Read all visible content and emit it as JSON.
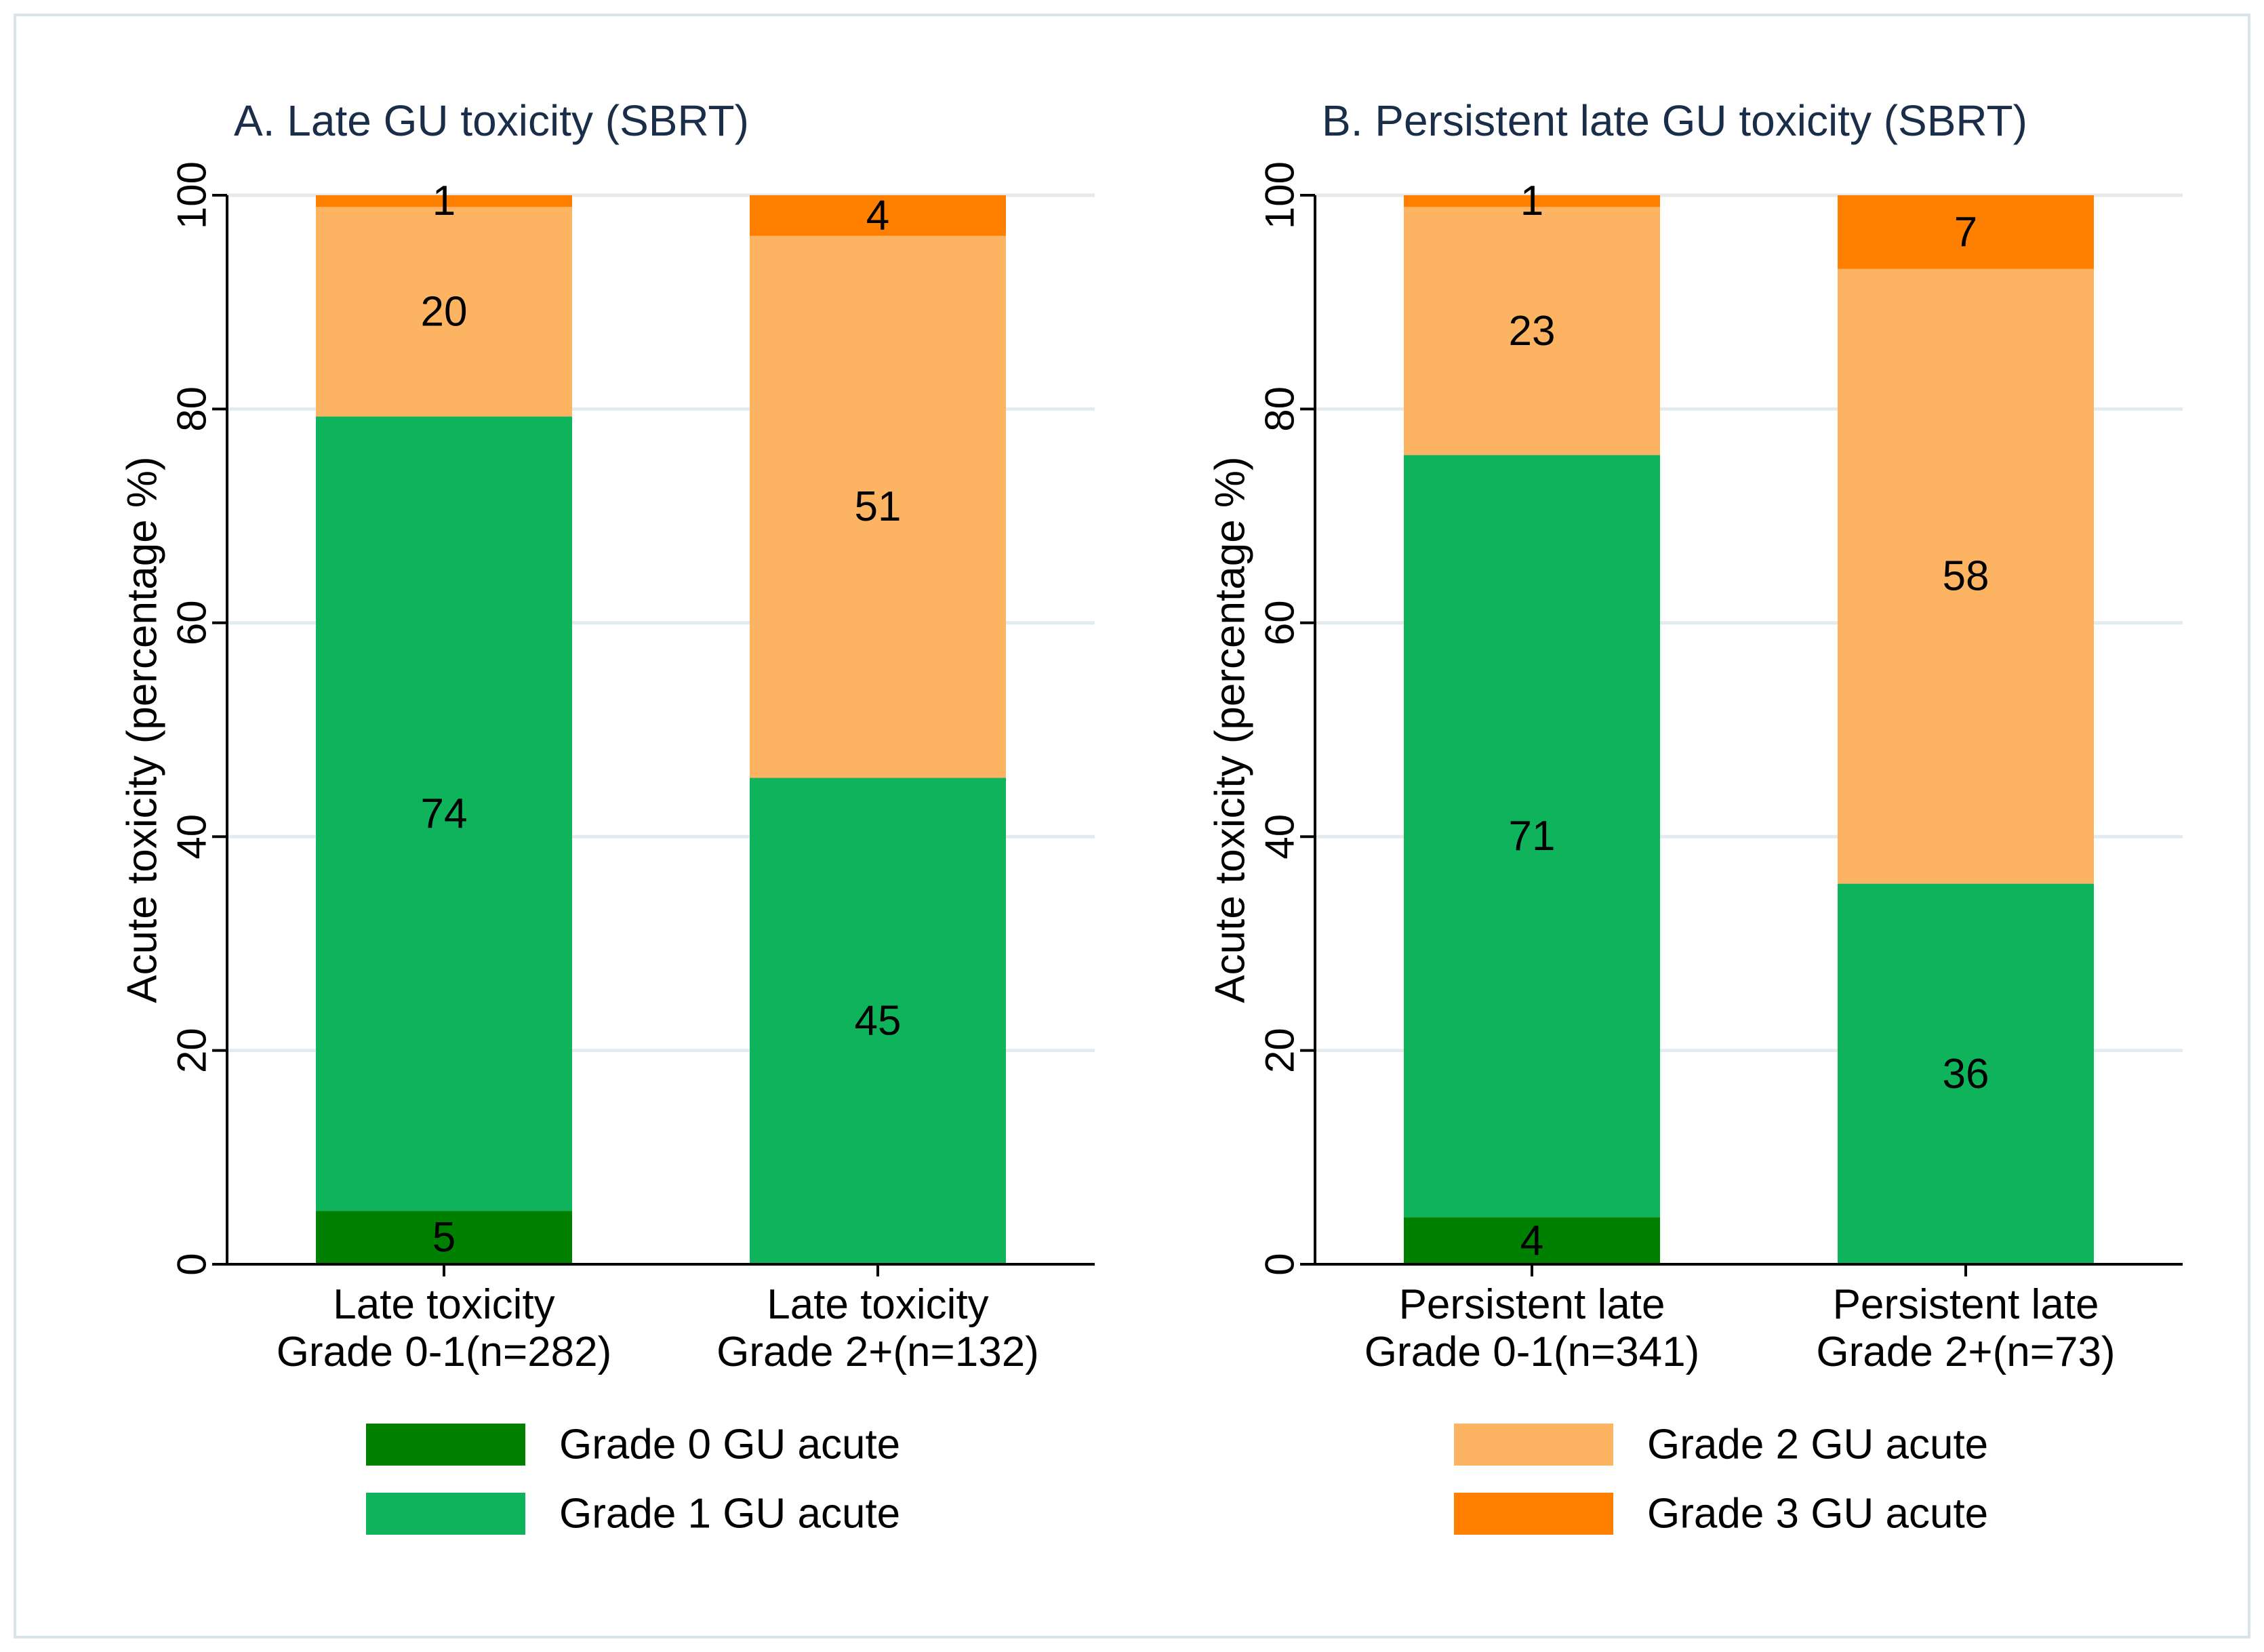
{
  "chart_data": [
    {
      "type": "bar",
      "stacked": true,
      "title": "A. Late GU toxicity (SBRT)",
      "ylabel": "Acute toxicity (percentage %)",
      "xlabel": "",
      "ylim": [
        0,
        100
      ],
      "yticks": [
        0,
        20,
        40,
        60,
        80,
        100
      ],
      "grid": true,
      "categories": [
        [
          "Late toxicity",
          "Grade 0-1(n=282)"
        ],
        [
          "Late toxicity",
          "Grade 2+(n=132)"
        ]
      ],
      "series": [
        {
          "name": "Grade 0 GU acute",
          "color": "#008000",
          "values": [
            5,
            0
          ],
          "labels": [
            "5",
            ""
          ]
        },
        {
          "name": "Grade 1 GU acute",
          "color": "#0fb35c",
          "values": [
            74.3,
            45.5
          ],
          "labels": [
            "74",
            "45"
          ]
        },
        {
          "name": "Grade 2 GU acute",
          "color": "#fdb462",
          "values": [
            19.6,
            50.7
          ],
          "labels": [
            "20",
            "51"
          ]
        },
        {
          "name": "Grade 3 GU acute",
          "color": "#ff8000",
          "values": [
            1.1,
            3.8
          ],
          "labels": [
            "1",
            "4"
          ]
        }
      ],
      "legend": {
        "position": "bottom",
        "entries": [
          {
            "label": "Grade 0 GU acute",
            "color": "#008000"
          },
          {
            "label": "Grade 1 GU acute",
            "color": "#0fb35c"
          }
        ]
      }
    },
    {
      "type": "bar",
      "stacked": true,
      "title": "B. Persistent late GU toxicity (SBRT)",
      "ylabel": "Acute toxicity (percentage %)",
      "xlabel": "",
      "ylim": [
        0,
        100
      ],
      "yticks": [
        0,
        20,
        40,
        60,
        80,
        100
      ],
      "grid": true,
      "categories": [
        [
          "Persistent late",
          "Grade 0-1(n=341)"
        ],
        [
          "Persistent late",
          "Grade 2+(n=73)"
        ]
      ],
      "series": [
        {
          "name": "Grade 0 GU acute",
          "color": "#008000",
          "values": [
            4.4,
            0
          ],
          "labels": [
            "4",
            ""
          ]
        },
        {
          "name": "Grade 1 GU acute",
          "color": "#0fb35c",
          "values": [
            71.3,
            35.6
          ],
          "labels": [
            "71",
            "36"
          ]
        },
        {
          "name": "Grade 2 GU acute",
          "color": "#fdb462",
          "values": [
            23.2,
            57.5
          ],
          "labels": [
            "23",
            "58"
          ]
        },
        {
          "name": "Grade 3 GU acute",
          "color": "#ff8000",
          "values": [
            1.1,
            6.9
          ],
          "labels": [
            "1",
            "7"
          ]
        }
      ],
      "legend": {
        "position": "bottom",
        "entries": [
          {
            "label": "Grade 2 GU acute",
            "color": "#fdb462"
          },
          {
            "label": "Grade 3 GU acute",
            "color": "#ff8000"
          }
        ]
      }
    }
  ],
  "colors": {
    "grid": "#e3ebef",
    "axis": "#000000",
    "frame": "#d8e4ea"
  }
}
